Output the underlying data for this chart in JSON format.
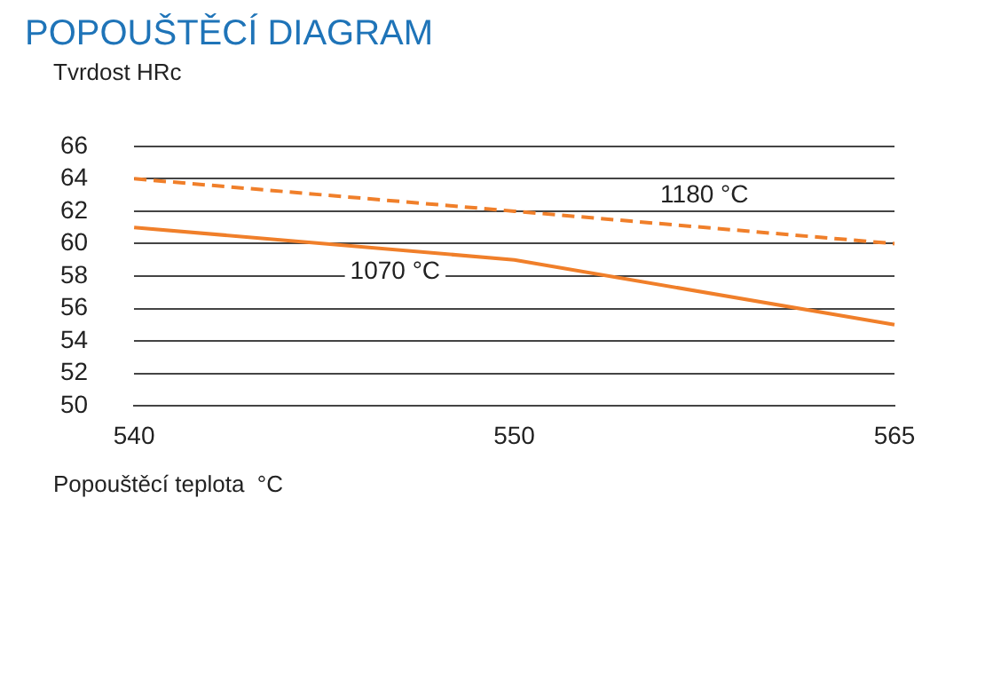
{
  "chart_data": {
    "type": "line",
    "title": "POPOUŠTĚCÍ DIAGRAM",
    "ylabel": "Tvrdost HRc",
    "xlabel": "Popouštěcí teplota  °C",
    "categories": [
      "540",
      "550",
      "565"
    ],
    "series": [
      {
        "name": "1180 °C",
        "color": "#f07f2a",
        "values": [
          64,
          62,
          60
        ],
        "line_style": "dashed"
      },
      {
        "name": "1070 °C",
        "color": "#f07f2a",
        "values": [
          61,
          59,
          55
        ],
        "line_style": "solid"
      }
    ],
    "ylim": [
      50,
      66
    ],
    "yticks": [
      50,
      52,
      54,
      56,
      58,
      60,
      62,
      64,
      66
    ],
    "grid": "y",
    "legend": false,
    "marker": "none"
  }
}
